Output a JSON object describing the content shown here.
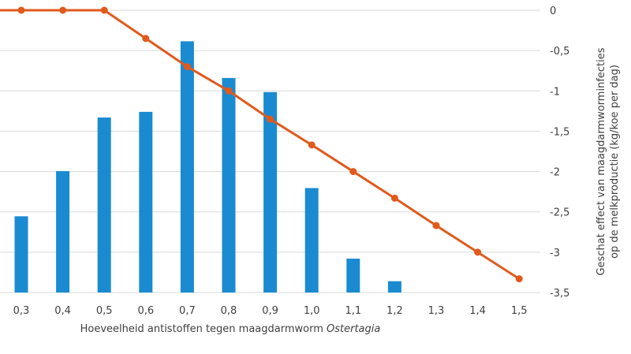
{
  "chart_data": {
    "type": "bar+line",
    "categories": [
      "0,3",
      "0,4",
      "0,5",
      "0,6",
      "0,7",
      "0,8",
      "0,9",
      "1,0",
      "1,1",
      "1,2",
      "1,3",
      "1,4",
      "1,5"
    ],
    "bar_series": {
      "values": [
        27,
        43,
        62,
        64,
        89,
        76,
        71,
        37,
        12,
        4,
        null,
        null,
        null
      ],
      "color": "#1a8bd1"
    },
    "line_series": {
      "values": [
        0,
        0,
        0,
        -0.35,
        -0.7,
        -1.0,
        -1.35,
        -1.67,
        -2.0,
        -2.33,
        -2.67,
        -3.0,
        -3.33
      ],
      "color": "#e05a1c"
    },
    "xlabel_prefix": "Hoeveelheid antistoffen tegen maagdarmworm ",
    "xlabel_italic": "Ostertagia",
    "ylabel_right_line1": "Geschat effect van maagdarmworminfecties",
    "ylabel_right_line2": "op de melkproductie (kg/koe per dag)",
    "right_axis": {
      "ylim": [
        -3.5,
        0
      ],
      "ticks": [
        0,
        -0.5,
        -1,
        -1.5,
        -2,
        -2.5,
        -3,
        -3.5
      ],
      "tick_labels": [
        "0",
        "-0,5",
        "-1",
        "-1,5",
        "-2",
        "-2,5",
        "-3",
        "-3,5"
      ]
    },
    "left_axis_ylim": [
      0,
      100
    ],
    "grid": true,
    "gridline_color": "#d9d9d9"
  }
}
